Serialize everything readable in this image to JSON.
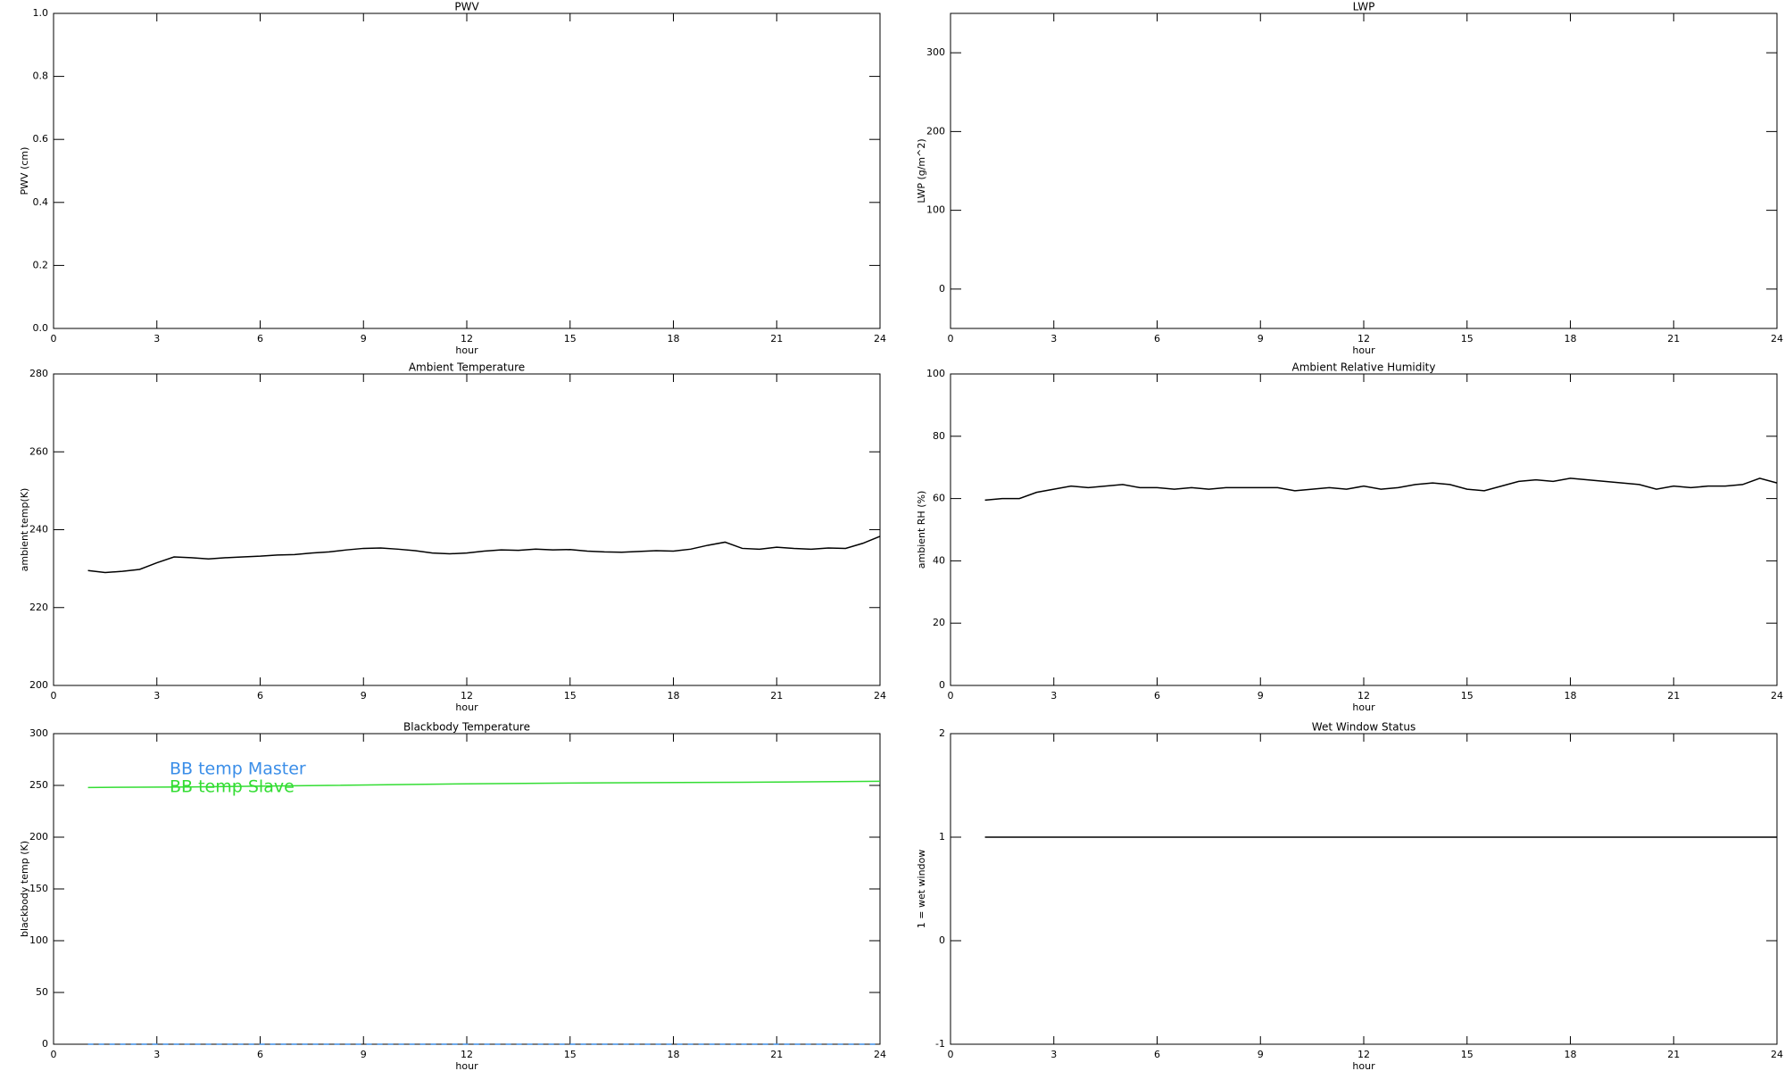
{
  "chart_data": [
    {
      "type": "line",
      "title": "PWV",
      "xlabel": "hour",
      "ylabel": "PWV (cm)",
      "xlim": [
        0,
        24
      ],
      "xticks": [
        0,
        3,
        6,
        9,
        12,
        15,
        18,
        21,
        24
      ],
      "ylim": [
        0,
        1
      ],
      "yticks": [
        {
          "value": 0,
          "label": "0.0"
        },
        0.2,
        0.4,
        0.6,
        0.8,
        {
          "value": 1,
          "label": "1.0"
        }
      ]
    },
    {
      "type": "line",
      "title": "LWP",
      "xlabel": "hour",
      "ylabel": "LWP (g/m^2)",
      "xlim": [
        0,
        24
      ],
      "xticks": [
        0,
        3,
        6,
        9,
        12,
        15,
        18,
        21,
        24
      ],
      "ylim": [
        -50,
        350
      ],
      "yticks": [
        0,
        100,
        200,
        300
      ]
    },
    {
      "type": "line",
      "title": "Ambient Temperature",
      "xlabel": "hour",
      "ylabel": "ambient temp(K)",
      "xlim": [
        0,
        24
      ],
      "xticks": [
        0,
        3,
        6,
        9,
        12,
        15,
        18,
        21,
        24
      ],
      "ylim": [
        200,
        280
      ],
      "yticks": [
        200,
        220,
        240,
        260,
        280
      ],
      "x": [
        1,
        1.5,
        2,
        2.5,
        3,
        3.5,
        4,
        4.5,
        5,
        5.5,
        6,
        6.5,
        7,
        7.5,
        8,
        8.5,
        9,
        9.5,
        10,
        10.5,
        11,
        11.5,
        12,
        12.5,
        13,
        13.5,
        14,
        14.5,
        15,
        15.5,
        16,
        16.5,
        17,
        17.5,
        18,
        18.5,
        19,
        19.5,
        20,
        20.5,
        21,
        21.5,
        22,
        22.5,
        23,
        23.5,
        24
      ],
      "series": [
        {
          "color": "#000000",
          "values": [
            229.5,
            229,
            229.3,
            229.8,
            231.5,
            233,
            232.8,
            232.5,
            232.8,
            233,
            233.2,
            233.5,
            233.6,
            234,
            234.3,
            234.8,
            235.2,
            235.3,
            235,
            234.6,
            234,
            233.8,
            234,
            234.5,
            234.8,
            234.7,
            235,
            234.8,
            234.9,
            234.5,
            234.3,
            234.2,
            234.4,
            234.6,
            234.5,
            235,
            236,
            236.8,
            235.2,
            235,
            235.5,
            235.2,
            235,
            235.3,
            235.2,
            236.5,
            238.3
          ]
        }
      ]
    },
    {
      "type": "line",
      "title": "Ambient Relative Humidity",
      "xlabel": "hour",
      "ylabel": "ambient RH (%)",
      "xlim": [
        0,
        24
      ],
      "xticks": [
        0,
        3,
        6,
        9,
        12,
        15,
        18,
        21,
        24
      ],
      "ylim": [
        0,
        100
      ],
      "yticks": [
        0,
        20,
        40,
        60,
        80,
        100
      ],
      "x": [
        1,
        1.5,
        2,
        2.5,
        3,
        3.5,
        4,
        4.5,
        5,
        5.5,
        6,
        6.5,
        7,
        7.5,
        8,
        8.5,
        9,
        9.5,
        10,
        10.5,
        11,
        11.5,
        12,
        12.5,
        13,
        13.5,
        14,
        14.5,
        15,
        15.5,
        16,
        16.5,
        17,
        17.5,
        18,
        18.5,
        19,
        19.5,
        20,
        20.5,
        21,
        21.5,
        22,
        22.5,
        23,
        23.5,
        24
      ],
      "series": [
        {
          "color": "#000000",
          "values": [
            59.5,
            60,
            60,
            62,
            63,
            64,
            63.5,
            64,
            64.5,
            63.5,
            63.5,
            63,
            63.5,
            63,
            63.5,
            63.5,
            63.5,
            63.5,
            62.5,
            63,
            63.5,
            63,
            64,
            63,
            63.5,
            64.5,
            65,
            64.5,
            63,
            62.5,
            64,
            65.5,
            66,
            65.5,
            66.5,
            66,
            65.5,
            65,
            64.5,
            63,
            64,
            63.5,
            64,
            64,
            64.5,
            66.5,
            65
          ]
        }
      ]
    },
    {
      "type": "line",
      "title": "Blackbody Temperature",
      "xlabel": "hour",
      "ylabel": "blackbody temp (K)",
      "xlim": [
        0,
        24
      ],
      "xticks": [
        0,
        3,
        6,
        9,
        12,
        15,
        18,
        21,
        24
      ],
      "ylim": [
        0,
        300
      ],
      "yticks": [
        0,
        50,
        100,
        150,
        200,
        250,
        300
      ],
      "x": [
        1,
        4,
        8,
        12,
        16,
        20,
        24
      ],
      "series": [
        {
          "name": "BB temp Master",
          "color": "#3b8ee8",
          "linestyle": "dashed",
          "values": [
            0,
            0,
            0,
            0,
            0,
            0,
            0
          ]
        },
        {
          "name": "BB temp Slave",
          "color": "#33dd33",
          "values": [
            248,
            248.5,
            250,
            251.5,
            252.5,
            253,
            254
          ]
        }
      ]
    },
    {
      "type": "line",
      "title": "Wet Window Status",
      "xlabel": "hour",
      "ylabel": "1 = wet window",
      "xlim": [
        0,
        24
      ],
      "xticks": [
        0,
        3,
        6,
        9,
        12,
        15,
        18,
        21,
        24
      ],
      "ylim": [
        -1,
        2
      ],
      "yticks": [
        -1,
        0,
        1,
        2
      ],
      "x": [
        1,
        24
      ],
      "series": [
        {
          "color": "#000000",
          "values": [
            1,
            1
          ]
        }
      ]
    }
  ]
}
